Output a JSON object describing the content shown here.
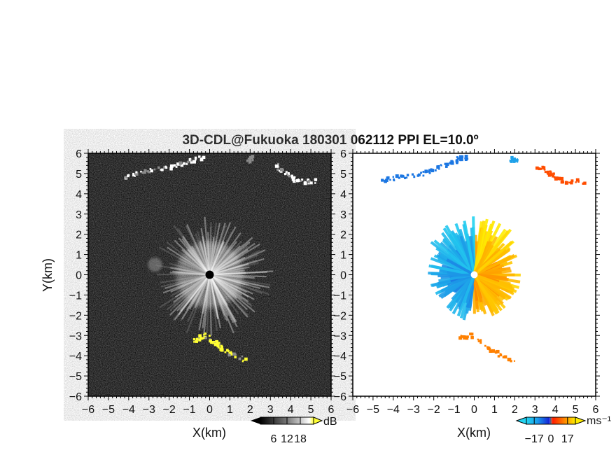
{
  "chart_data": [
    {
      "type": "heatmap",
      "title": "3D-CDL@Fukuoka 180301 062112 PPI EL=10.0º",
      "field": "reflectivity",
      "xlabel": "X(km)",
      "ylabel": "Y(km)",
      "xlim": [
        -6,
        6
      ],
      "ylim": [
        -6,
        6
      ],
      "xticks": [
        "−6",
        "−5",
        "−4",
        "−3",
        "−2",
        "−1",
        "0",
        "1",
        "2",
        "3",
        "4",
        "5",
        "6"
      ],
      "yticks": [
        "−6",
        "−5",
        "−4",
        "−3",
        "−2",
        "−1",
        "0",
        "1",
        "2",
        "3",
        "4",
        "5",
        "6"
      ],
      "colorbar": {
        "unit": "dB",
        "ticks": [
          "6",
          "12",
          "18"
        ],
        "range": [
          0,
          24
        ]
      },
      "colors": {
        "background": "#151515",
        "mid": "#8a8a8a",
        "high": "#ffffff",
        "peak": "#ffff33"
      },
      "features": [
        {
          "kind": "radial-burst",
          "center": [
            0,
            0
          ],
          "radius_km": 3.0,
          "level": "high"
        },
        {
          "kind": "blob",
          "center": [
            -2.7,
            0.5
          ],
          "radius_km": 0.35,
          "level": "mid"
        },
        {
          "kind": "band",
          "points": [
            [
              -4.2,
              4.8
            ],
            [
              -3.2,
              5.1
            ],
            [
              -2.0,
              5.3
            ],
            [
              -1.0,
              5.6
            ],
            [
              -0.3,
              5.8
            ]
          ],
          "level": "high"
        },
        {
          "kind": "band",
          "points": [
            [
              1.9,
              5.6
            ],
            [
              2.1,
              5.8
            ]
          ],
          "level": "mid"
        },
        {
          "kind": "band",
          "points": [
            [
              3.3,
              5.4
            ],
            [
              3.8,
              5.0
            ],
            [
              4.4,
              4.6
            ],
            [
              5.3,
              4.6
            ]
          ],
          "level": "high"
        },
        {
          "kind": "band",
          "points": [
            [
              -0.8,
              -3.3
            ],
            [
              -0.2,
              -3.0
            ],
            [
              0.4,
              -3.5
            ],
            [
              1.0,
              -3.9
            ],
            [
              1.7,
              -4.2
            ]
          ],
          "level": "peak"
        }
      ]
    },
    {
      "type": "heatmap",
      "field": "radial velocity",
      "xlabel": "X(km)",
      "xlim": [
        -6,
        6
      ],
      "ylim": [
        -6,
        6
      ],
      "xticks": [
        "−6",
        "−5",
        "−4",
        "−3",
        "−2",
        "−1",
        "0",
        "1",
        "2",
        "3",
        "4",
        "5",
        "6"
      ],
      "yticks": [
        "−6",
        "−5",
        "−4",
        "−3",
        "−2",
        "−1",
        "0",
        "1",
        "2",
        "3",
        "4",
        "5",
        "6"
      ],
      "colorbar": {
        "unit": "ms⁻¹",
        "ticks": [
          "−17",
          "0",
          "17"
        ],
        "range": [
          -25,
          25
        ]
      },
      "colors": {
        "negative_far": "#1420d6",
        "negative_near": "#22d3f0",
        "zero": "#ffffff",
        "positive_near": "#ff1a00",
        "positive_far": "#ffee00"
      },
      "features": [
        {
          "kind": "radial-burst",
          "center": [
            0,
            0
          ],
          "radius_km": 2.2,
          "sign": "dipole"
        },
        {
          "kind": "band",
          "points": [
            [
              -4.5,
              4.7
            ],
            [
              -3.6,
              4.8
            ],
            [
              -2.5,
              5.0
            ],
            [
              -1.7,
              5.3
            ],
            [
              -0.8,
              5.7
            ],
            [
              -0.4,
              5.8
            ]
          ],
          "velocity": -12
        },
        {
          "kind": "band",
          "points": [
            [
              1.8,
              5.7
            ],
            [
              2.1,
              5.6
            ]
          ],
          "velocity": -18
        },
        {
          "kind": "band",
          "points": [
            [
              3.2,
              5.3
            ],
            [
              3.8,
              5.0
            ],
            [
              4.4,
              4.6
            ],
            [
              5.4,
              4.6
            ]
          ],
          "velocity": 6
        },
        {
          "kind": "band",
          "points": [
            [
              -0.7,
              -3.1
            ],
            [
              -0.2,
              -3.0
            ],
            [
              1.0,
              -3.8
            ],
            [
              1.9,
              -4.3
            ]
          ],
          "velocity": 12
        }
      ]
    }
  ]
}
